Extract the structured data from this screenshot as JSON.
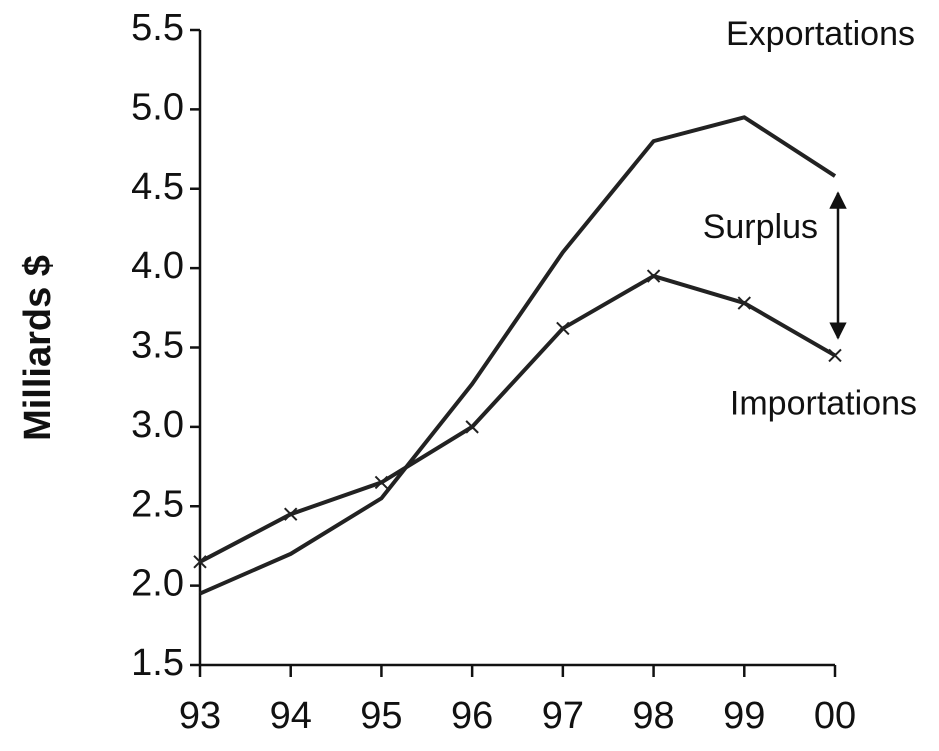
{
  "chart_data": {
    "type": "line",
    "y_label": "Milliards $",
    "annotation": "Surplus",
    "categories": [
      "93",
      "94",
      "95",
      "96",
      "97",
      "98",
      "99",
      "00"
    ],
    "series": [
      {
        "name": "Exportations",
        "color": "#222222",
        "marker": "none",
        "values": [
          1.95,
          2.2,
          2.55,
          3.27,
          4.1,
          4.8,
          4.95,
          4.58
        ]
      },
      {
        "name": "Importations",
        "color": "#222222",
        "marker": "x",
        "values": [
          2.15,
          2.45,
          2.65,
          3.0,
          3.62,
          3.95,
          3.78,
          3.45
        ]
      }
    ],
    "ylim": [
      1.5,
      5.5
    ],
    "yticks": [
      1.5,
      {
        "value": 2,
        "label": "2.0"
      },
      2.5,
      {
        "value": 3,
        "label": "3.0"
      },
      3.5,
      {
        "value": 4,
        "label": "4.0"
      },
      4.5,
      {
        "value": 5,
        "label": "5.0"
      },
      5.5
    ],
    "grid": false
  }
}
